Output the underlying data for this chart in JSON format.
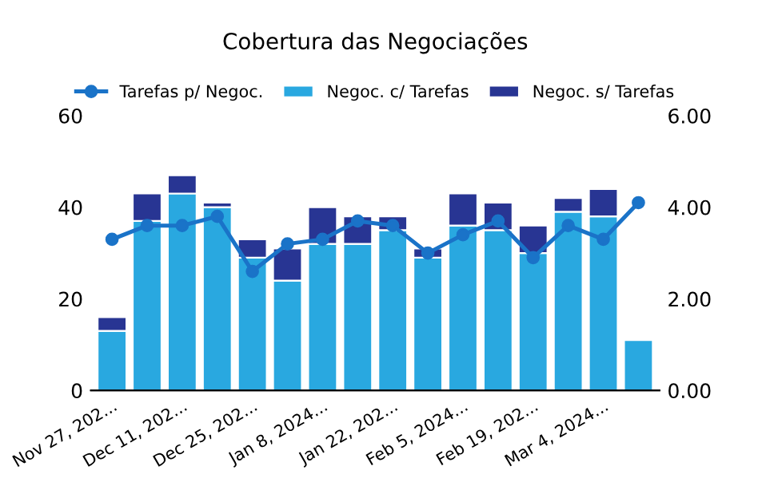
{
  "chart_data": {
    "type": "bar",
    "title": "Cobertura das Negociações",
    "stacked": true,
    "categories": [
      "Nov 27, 202...",
      null,
      "Dec 11, 202...",
      null,
      "Dec 25, 202...",
      null,
      "Jan 8, 2024...",
      null,
      "Jan 22, 202...",
      null,
      "Feb 5, 2024...",
      null,
      "Feb 19, 202...",
      null,
      "Mar 4, 2024...",
      null
    ],
    "series": [
      {
        "name": "Tarefas p/ Negoc.",
        "type": "line",
        "axis": "y2",
        "color": "#1a73c8",
        "marker": "circle",
        "values": [
          3.3,
          3.6,
          3.6,
          3.8,
          2.6,
          3.2,
          3.3,
          3.7,
          3.6,
          3.0,
          3.4,
          3.7,
          2.9,
          3.6,
          3.3,
          4.1
        ]
      },
      {
        "name": "Negoc. c/ Tarefas",
        "color": "#29a8e0",
        "values": [
          13,
          37,
          43,
          40,
          29,
          24,
          32,
          32,
          35,
          29,
          36,
          35,
          30,
          39,
          38,
          11
        ]
      },
      {
        "name": "Negoc. s/ Tarefas",
        "color": "#283593",
        "values": [
          3,
          6,
          4,
          1,
          4,
          7,
          8,
          6,
          3,
          2,
          7,
          6,
          6,
          3,
          6,
          0
        ]
      }
    ],
    "ylim": [
      0,
      60
    ],
    "yticks": [
      0,
      20,
      40,
      60
    ],
    "y2lim": [
      0,
      6
    ],
    "y2ticks": [
      {
        "value": 0,
        "label": "0.00"
      },
      {
        "value": 2,
        "label": "2.00"
      },
      {
        "value": 4,
        "label": "4.00"
      },
      {
        "value": 6,
        "label": "6.00"
      }
    ],
    "legend": "top",
    "grid": false
  }
}
